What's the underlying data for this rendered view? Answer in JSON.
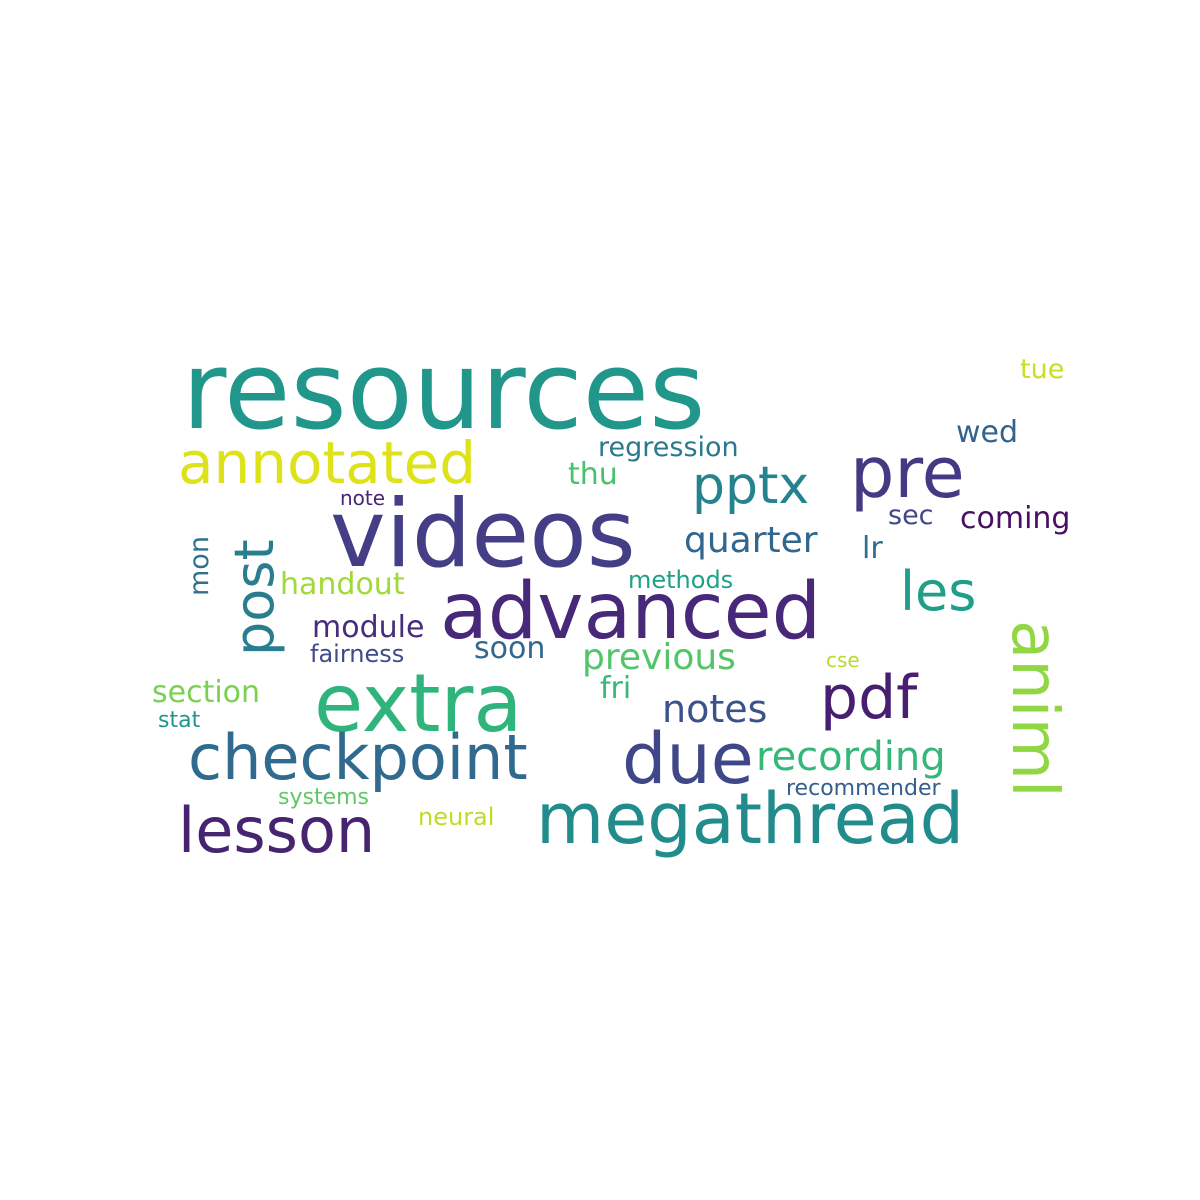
{
  "words": [
    {
      "text": "resources",
      "color": "#21978b"
    },
    {
      "text": "videos",
      "color": "#433e85"
    },
    {
      "text": "advanced",
      "color": "#482878"
    },
    {
      "text": "extra",
      "color": "#2fb47c"
    },
    {
      "text": "checkpoint",
      "color": "#306a8e"
    },
    {
      "text": "megathread",
      "color": "#228c8d"
    },
    {
      "text": "lesson",
      "color": "#46246f"
    },
    {
      "text": "due",
      "color": "#3f4788"
    },
    {
      "text": "animl",
      "color": "#90d743"
    },
    {
      "text": "annotated",
      "color": "#dde318"
    },
    {
      "text": "pre",
      "color": "#443a83"
    },
    {
      "text": "pptx",
      "color": "#25838e"
    },
    {
      "text": "post",
      "color": "#287d8e"
    },
    {
      "text": "les",
      "color": "#1f9e89"
    },
    {
      "text": "pdf",
      "color": "#481f70"
    },
    {
      "text": "recording",
      "color": "#35b779"
    },
    {
      "text": "notes",
      "color": "#3b528b"
    },
    {
      "text": "previous",
      "color": "#52c569"
    },
    {
      "text": "quarter",
      "color": "#31668e"
    },
    {
      "text": "handout",
      "color": "#a0da39"
    },
    {
      "text": "module",
      "color": "#472d7b"
    },
    {
      "text": "coming",
      "color": "#471063"
    },
    {
      "text": "regression",
      "color": "#2a788e"
    },
    {
      "text": "section",
      "color": "#7ad151"
    },
    {
      "text": "soon",
      "color": "#31688e"
    },
    {
      "text": "wed",
      "color": "#33638d"
    },
    {
      "text": "thu",
      "color": "#4ac16d"
    },
    {
      "text": "fri",
      "color": "#38b977"
    },
    {
      "text": "mon",
      "color": "#2c728e"
    },
    {
      "text": "sec",
      "color": "#404688"
    },
    {
      "text": "lr",
      "color": "#2d708e"
    },
    {
      "text": "fairness",
      "color": "#3e4a89"
    },
    {
      "text": "tue",
      "color": "#c8e020"
    },
    {
      "text": "methods",
      "color": "#1fa088"
    },
    {
      "text": "systems",
      "color": "#5ec962"
    },
    {
      "text": "neural",
      "color": "#bade28"
    },
    {
      "text": "recommender",
      "color": "#355f8d"
    },
    {
      "text": "stat",
      "color": "#1f958b"
    },
    {
      "text": "cse",
      "color": "#b5de2b"
    },
    {
      "text": "note",
      "color": "#482576"
    }
  ]
}
